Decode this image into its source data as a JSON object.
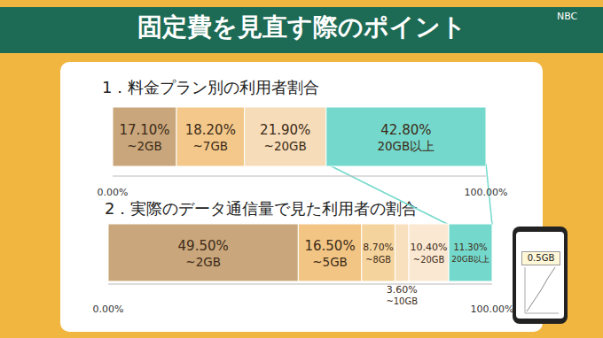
{
  "header": {
    "title": "固定費を見直す際のポイント",
    "logo": "NBC"
  },
  "phone": {
    "label": "0.5GB"
  },
  "chart_data": [
    {
      "type": "bar",
      "title": "1．料金プラン別の利用者割合",
      "orientation": "horizontal",
      "stacked": true,
      "data_labels": true,
      "categories": [
        null
      ],
      "xlim": [
        0,
        100
      ],
      "xticks": [
        {
          "value": 0,
          "label": "0.00%"
        },
        {
          "value": 100,
          "label": "100.00%"
        }
      ],
      "series": [
        {
          "name": "~2GB",
          "color": "#c9a67b",
          "values": [
            17.1
          ],
          "value_labels": [
            "17.10%"
          ]
        },
        {
          "name": "~7GB",
          "color": "#f3c88a",
          "values": [
            18.2
          ],
          "value_labels": [
            "18.20%"
          ]
        },
        {
          "name": "~20GB",
          "color": "#f6dcb8",
          "values": [
            21.9
          ],
          "value_labels": [
            "21.90%"
          ]
        },
        {
          "name": "20GB以上",
          "color": "#74d9cc",
          "values": [
            42.8
          ],
          "value_labels": [
            "42.80%"
          ]
        }
      ]
    },
    {
      "type": "bar",
      "title": "2．実際のデータ通信量で見た利用者の割合",
      "orientation": "horizontal",
      "stacked": true,
      "data_labels": true,
      "categories": [
        null
      ],
      "xlim": [
        0,
        100
      ],
      "xticks": [
        {
          "value": 0,
          "label": "0.00%"
        },
        {
          "value": 100,
          "label": "100.00%"
        }
      ],
      "series": [
        {
          "name": "~2GB",
          "color": "#c9a67b",
          "values": [
            49.5
          ],
          "value_labels": [
            "49.50%"
          ]
        },
        {
          "name": "~5GB",
          "color": "#f2c584",
          "values": [
            16.5
          ],
          "value_labels": [
            "16.50%"
          ]
        },
        {
          "name": "~8GB",
          "color": "#f5d39c",
          "values": [
            8.7
          ],
          "value_labels": [
            "8.70%"
          ]
        },
        {
          "name": "~10GB",
          "color": "#f8e0be",
          "values": [
            3.6
          ],
          "value_labels": [
            "3.60%"
          ]
        },
        {
          "name": "~20GB",
          "color": "#fbe8d2",
          "values": [
            10.4
          ],
          "value_labels": [
            "10.40%"
          ]
        },
        {
          "name": "20GB以上",
          "color": "#74d9cc",
          "values": [
            11.3
          ],
          "value_labels": [
            "11.30%"
          ]
        }
      ]
    }
  ]
}
